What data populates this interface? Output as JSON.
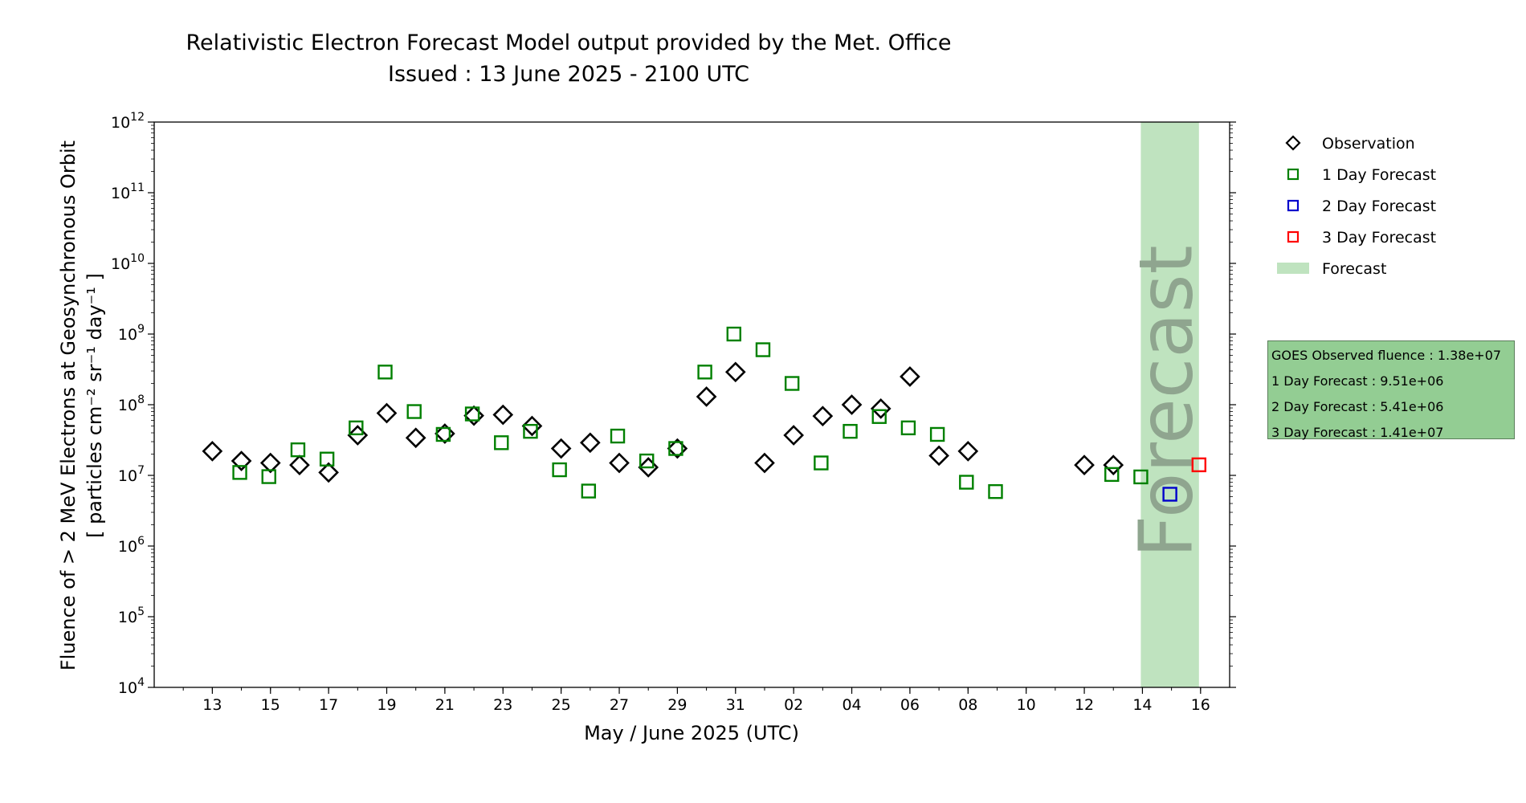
{
  "chart_data": {
    "type": "scatter",
    "title": "Relativistic Electron Forecast Model output provided by the Met. Office",
    "subtitle": "Issued : 13 June 2025 - 2100 UTC",
    "xlabel": "May / June 2025 (UTC)",
    "ylabel_line1": "Fluence of > 2 MeV Electrons at Geosynchronous Orbit",
    "ylabel_line2": "[ particles cm⁻² sr⁻¹ day⁻¹ ]",
    "y_scale": "log",
    "ylim": [
      10000,
      1000000000000
    ],
    "xlim": [
      "2025-05-11",
      "2025-06-17"
    ],
    "x_tick_dates": [
      "2025-05-13",
      "2025-05-15",
      "2025-05-17",
      "2025-05-19",
      "2025-05-21",
      "2025-05-23",
      "2025-05-25",
      "2025-05-27",
      "2025-05-29",
      "2025-05-31",
      "2025-06-02",
      "2025-06-04",
      "2025-06-06",
      "2025-06-08",
      "2025-06-10",
      "2025-06-12",
      "2025-06-14",
      "2025-06-16"
    ],
    "x_tick_labels": [
      "13",
      "15",
      "17",
      "19",
      "21",
      "23",
      "25",
      "27",
      "29",
      "31",
      "02",
      "04",
      "06",
      "08",
      "10",
      "12",
      "14",
      "16"
    ],
    "y_tick_exponents": [
      "4",
      "5",
      "6",
      "7",
      "8",
      "9",
      "10",
      "11",
      "12"
    ],
    "y_tick_base": "10",
    "forecast_region": [
      "2025-06-14",
      "2025-06-16"
    ],
    "forecast_region_label": "Forecast",
    "legend_position": "outside-right",
    "legend": [
      {
        "label": "Observation",
        "marker": "diamond",
        "color": "#000000"
      },
      {
        "label": "1 Day Forecast",
        "marker": "square",
        "color": "#008000"
      },
      {
        "label": "2 Day Forecast",
        "marker": "square",
        "color": "#0000cc"
      },
      {
        "label": "3 Day Forecast",
        "marker": "square",
        "color": "#ff0000"
      },
      {
        "label": "Forecast",
        "marker": "patch",
        "color": "#bfe3bf"
      }
    ],
    "series": [
      {
        "name": "Observation",
        "marker": "diamond",
        "color": "#000000",
        "points": [
          [
            "2025-05-13",
            22000000.0
          ],
          [
            "2025-05-14",
            16000000.0
          ],
          [
            "2025-05-15",
            15000000.0
          ],
          [
            "2025-05-16",
            14000000.0
          ],
          [
            "2025-05-17",
            11000000.0
          ],
          [
            "2025-05-18",
            37000000.0
          ],
          [
            "2025-05-19",
            76000000.0
          ],
          [
            "2025-05-20",
            34000000.0
          ],
          [
            "2025-05-21",
            39000000.0
          ],
          [
            "2025-05-22",
            70000000.0
          ],
          [
            "2025-05-23",
            72000000.0
          ],
          [
            "2025-05-24",
            50000000.0
          ],
          [
            "2025-05-25",
            24000000.0
          ],
          [
            "2025-05-26",
            29000000.0
          ],
          [
            "2025-05-27",
            15000000.0
          ],
          [
            "2025-05-28",
            13000000.0
          ],
          [
            "2025-05-29",
            24000000.0
          ],
          [
            "2025-05-30",
            130000000.0
          ],
          [
            "2025-05-31",
            290000000.0
          ],
          [
            "2025-06-01",
            15000000.0
          ],
          [
            "2025-06-02",
            37000000.0
          ],
          [
            "2025-06-03",
            69000000.0
          ],
          [
            "2025-06-04",
            100000000.0
          ],
          [
            "2025-06-05",
            88000000.0
          ],
          [
            "2025-06-06",
            250000000.0
          ],
          [
            "2025-06-07",
            19000000.0
          ],
          [
            "2025-06-08",
            22000000.0
          ],
          [
            "2025-06-12",
            14000000.0
          ],
          [
            "2025-06-13",
            14000000.0
          ]
        ]
      },
      {
        "name": "1 Day Forecast",
        "marker": "square",
        "color": "#008000",
        "points": [
          [
            "2025-05-14",
            11000000.0
          ],
          [
            "2025-05-15",
            9600000.0
          ],
          [
            "2025-05-16",
            23000000.0
          ],
          [
            "2025-05-17",
            17000000.0
          ],
          [
            "2025-05-18",
            47000000.0
          ],
          [
            "2025-05-19",
            290000000.0
          ],
          [
            "2025-05-20",
            80000000.0
          ],
          [
            "2025-05-21",
            38000000.0
          ],
          [
            "2025-05-22",
            74000000.0
          ],
          [
            "2025-05-23",
            29000000.0
          ],
          [
            "2025-05-24",
            42000000.0
          ],
          [
            "2025-05-25",
            12000000.0
          ],
          [
            "2025-05-26",
            6000000.0
          ],
          [
            "2025-05-27",
            36000000.0
          ],
          [
            "2025-05-28",
            16000000.0
          ],
          [
            "2025-05-29",
            24000000.0
          ],
          [
            "2025-05-30",
            290000000.0
          ],
          [
            "2025-05-31",
            1000000000.0
          ],
          [
            "2025-06-01",
            600000000.0
          ],
          [
            "2025-06-02",
            200000000.0
          ],
          [
            "2025-06-03",
            15000000.0
          ],
          [
            "2025-06-04",
            42000000.0
          ],
          [
            "2025-06-05",
            68000000.0
          ],
          [
            "2025-06-06",
            47000000.0
          ],
          [
            "2025-06-07",
            38000000.0
          ],
          [
            "2025-06-08",
            8000000.0
          ],
          [
            "2025-06-09",
            5900000.0
          ],
          [
            "2025-06-13",
            10300000.0
          ],
          [
            "2025-06-14",
            9510000.0
          ]
        ]
      },
      {
        "name": "2 Day Forecast",
        "marker": "square",
        "color": "#0000cc",
        "points": [
          [
            "2025-06-15",
            5410000.0
          ]
        ]
      },
      {
        "name": "3 Day Forecast",
        "marker": "square",
        "color": "#ff0000",
        "points": [
          [
            "2025-06-16",
            14100000.0
          ]
        ]
      }
    ]
  },
  "stats_box": {
    "line1": "GOES Observed fluence : 1.38e+07",
    "line2": "1 Day Forecast : 9.51e+06",
    "line3": "2 Day Forecast : 5.41e+06",
    "line4": "3 Day Forecast : 1.41e+07"
  }
}
